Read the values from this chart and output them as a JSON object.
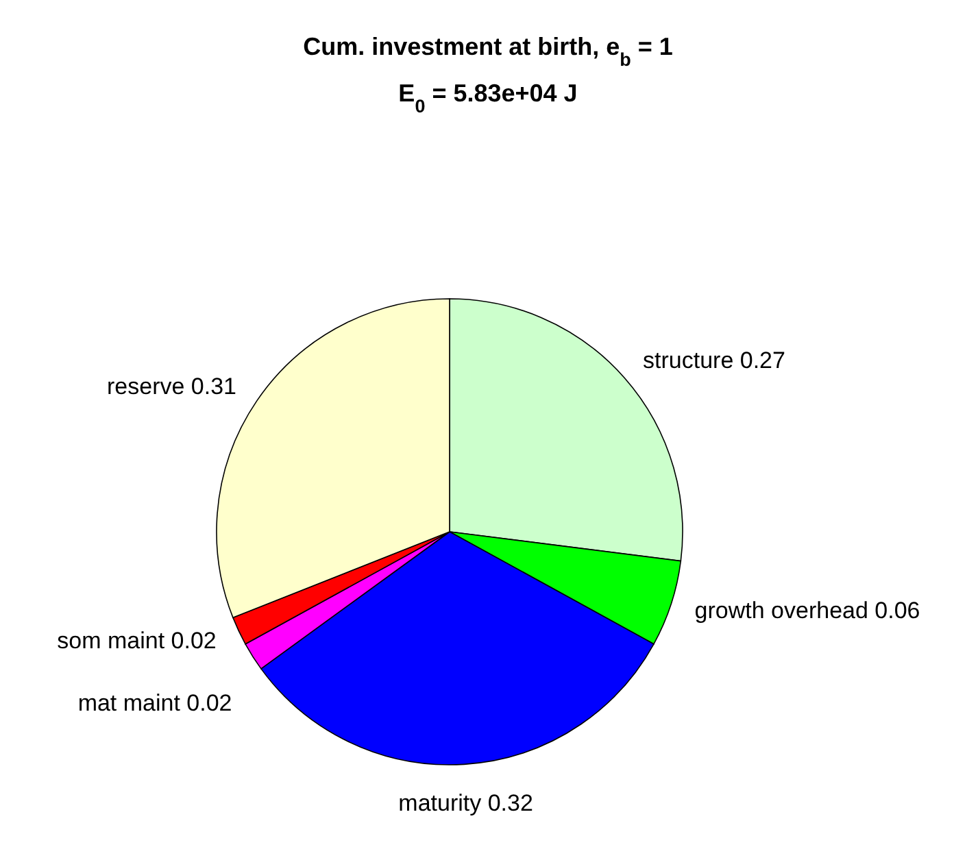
{
  "chart_data": {
    "type": "pie",
    "title": "Cum. investment at birth, e$_{b}$ = 1",
    "subtitle": "E$_{0}$ = 5.83e+04 J",
    "categories": [
      "structure 0.27",
      "growth overhead 0.06",
      "maturity 0.32",
      "mat maint 0.02",
      "som maint 0.02",
      "reserve 0.31"
    ],
    "values": [
      0.27,
      0.06,
      0.32,
      0.02,
      0.02,
      0.31
    ],
    "colors": [
      "#ccffcc",
      "#00ff00",
      "#0000ff",
      "#ff00ff",
      "#ff0000",
      "#ffffcc"
    ]
  }
}
